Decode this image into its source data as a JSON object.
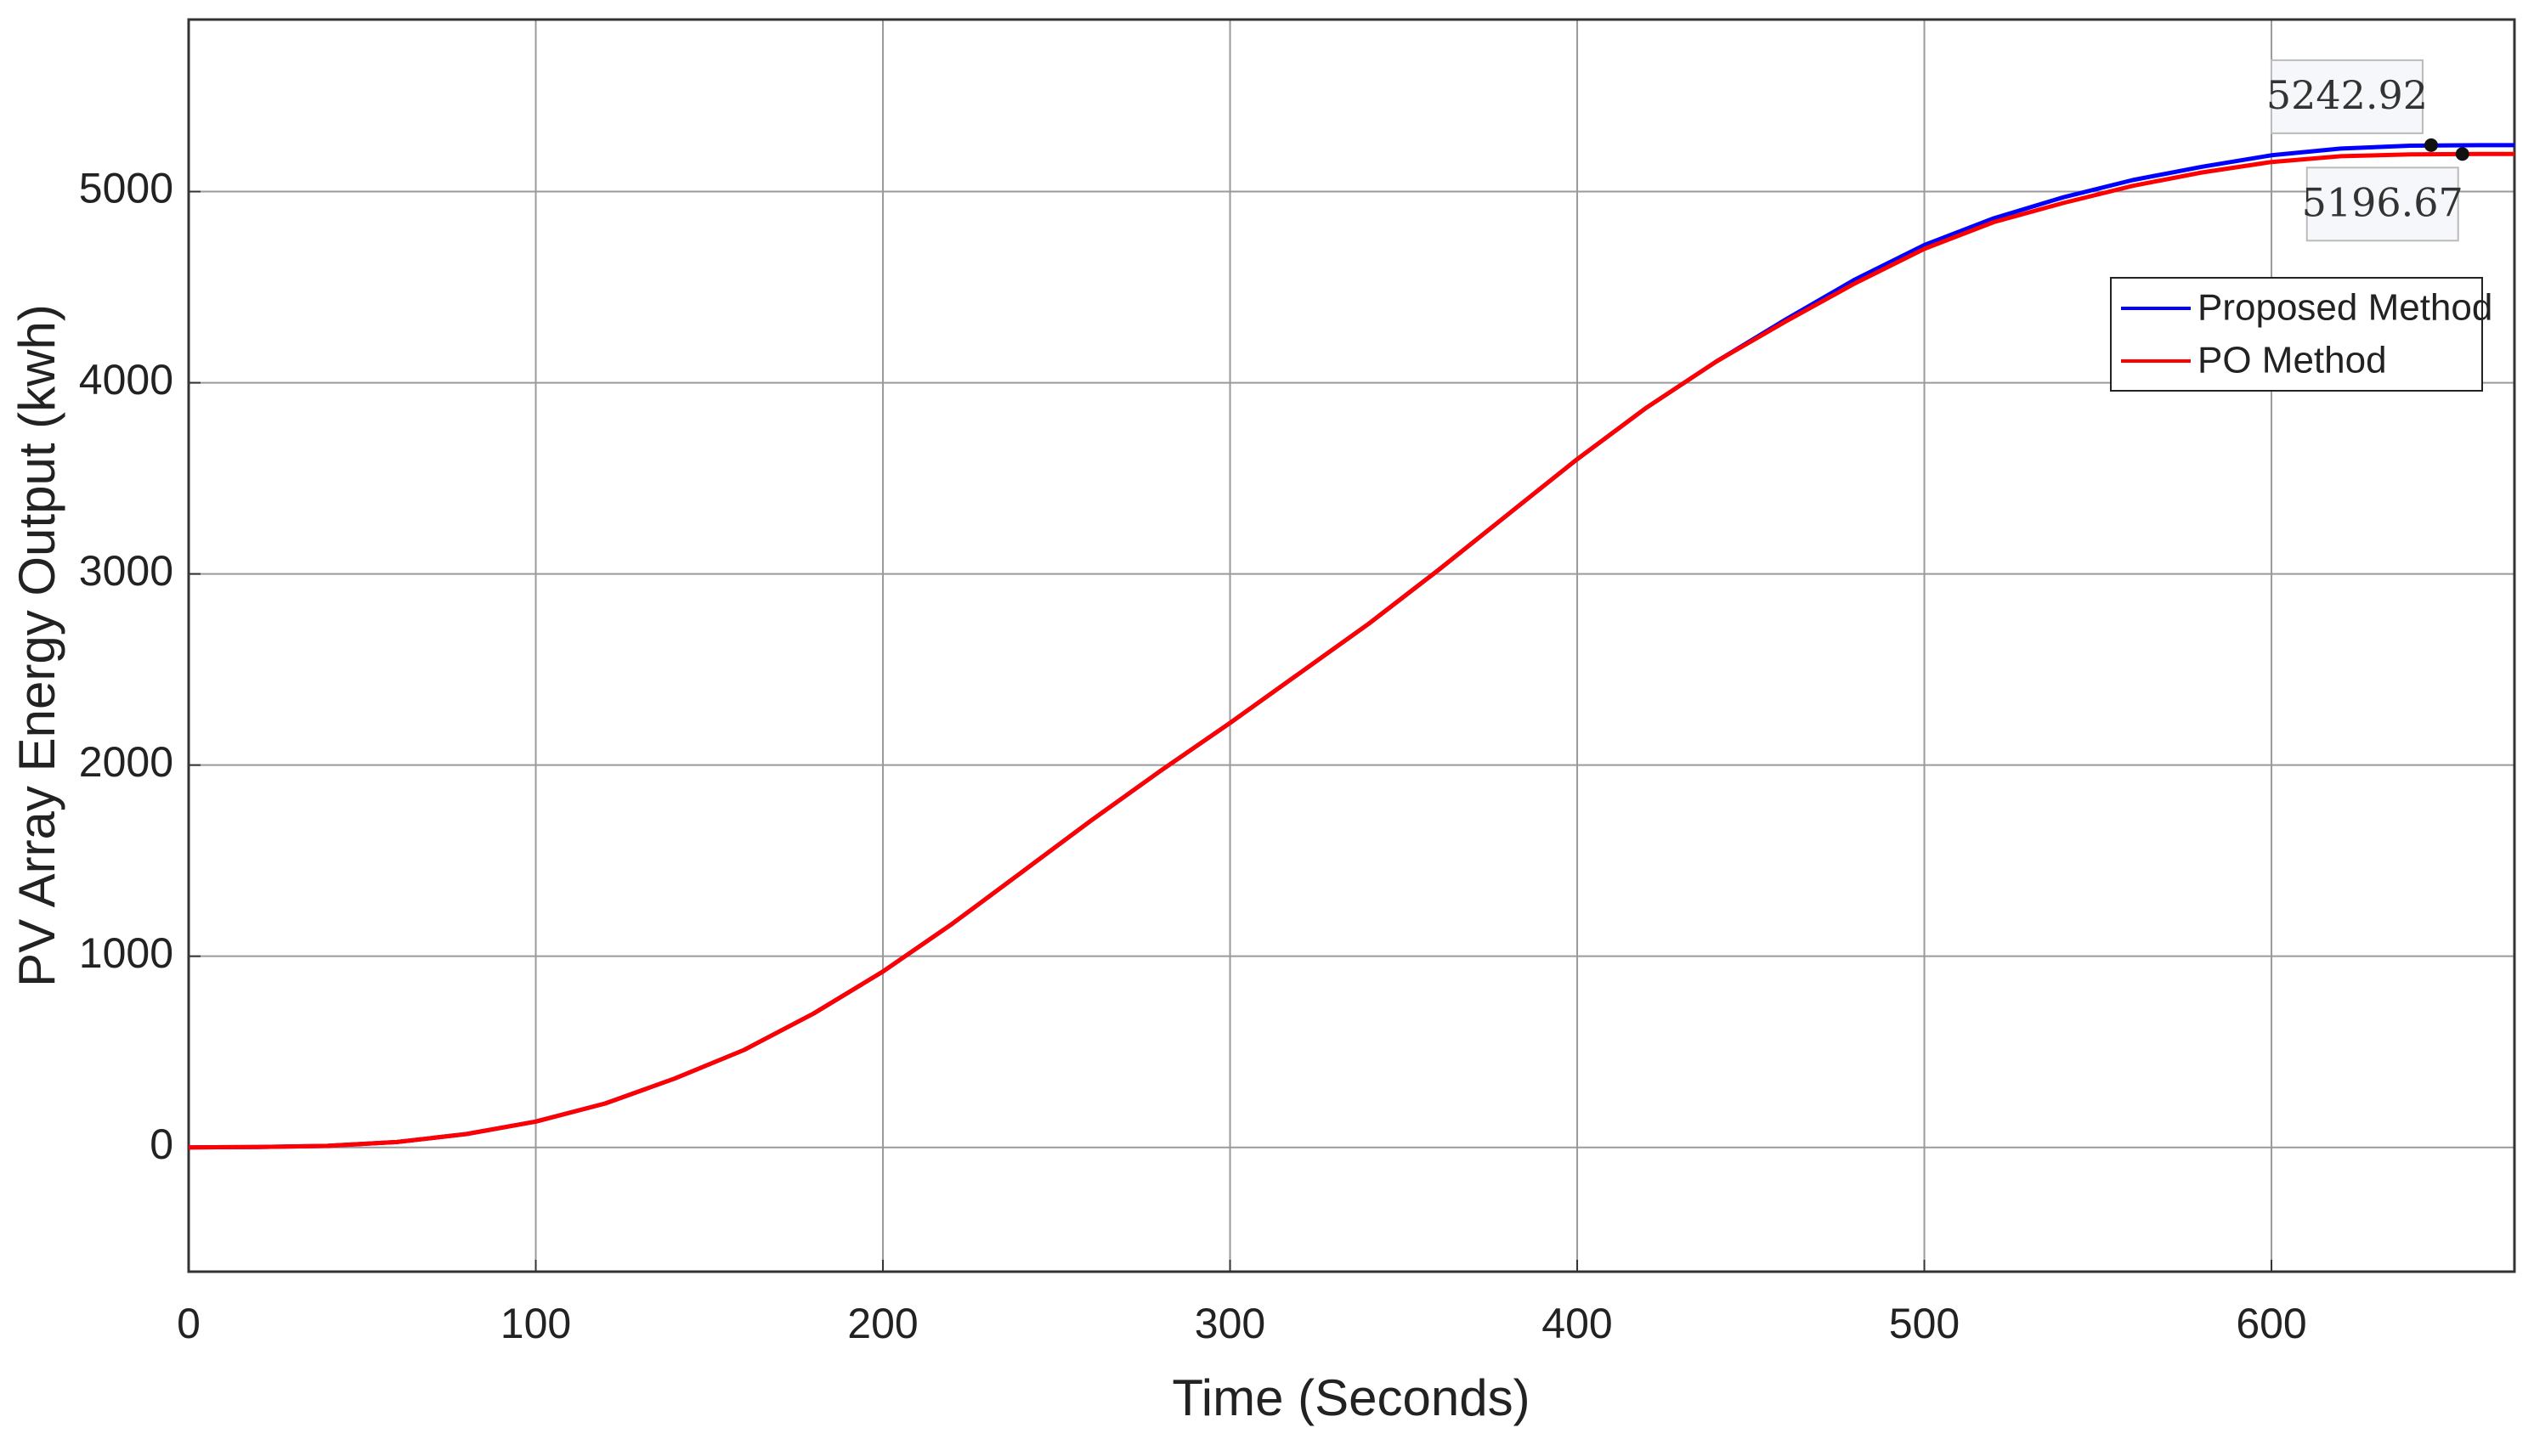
{
  "chart_data": {
    "type": "line",
    "xlabel": "Time (Seconds)",
    "ylabel": "PV Array Energy Output (kwh)",
    "x": [
      0,
      20,
      40,
      60,
      80,
      100,
      120,
      140,
      160,
      180,
      200,
      220,
      240,
      260,
      280,
      300,
      320,
      340,
      360,
      380,
      400,
      420,
      440,
      460,
      480,
      500,
      520,
      540,
      560,
      580,
      600,
      620,
      640,
      660,
      670
    ],
    "series": [
      {
        "name": "Proposed Method",
        "color": "#0000ff",
        "values": [
          0,
          2,
          8,
          28,
          70,
          135,
          230,
          360,
          510,
          700,
          920,
          1170,
          1440,
          1710,
          1970,
          2220,
          2480,
          2740,
          3020,
          3310,
          3600,
          3870,
          4110,
          4330,
          4540,
          4720,
          4860,
          4970,
          5060,
          5130,
          5190,
          5225,
          5240,
          5243,
          5243
        ]
      },
      {
        "name": "PO Method",
        "color": "#ff0000",
        "values": [
          0,
          2,
          8,
          28,
          70,
          135,
          230,
          360,
          510,
          700,
          920,
          1170,
          1440,
          1710,
          1970,
          2220,
          2480,
          2740,
          3020,
          3310,
          3600,
          3870,
          4110,
          4320,
          4520,
          4700,
          4840,
          4940,
          5030,
          5100,
          5155,
          5185,
          5195,
          5197,
          5197
        ]
      }
    ],
    "annotations": [
      {
        "label": "5242.92",
        "x": 646,
        "y": 5242.92
      },
      {
        "label": "5196.67",
        "x": 655,
        "y": 5196.67
      }
    ],
    "xlim": [
      0,
      670
    ],
    "ylim": [
      -650,
      5900
    ],
    "xticks": [
      0,
      100,
      200,
      300,
      400,
      500,
      600
    ],
    "yticks": [
      0,
      1000,
      2000,
      3000,
      4000,
      5000
    ],
    "grid": true,
    "legend": "upper right"
  }
}
